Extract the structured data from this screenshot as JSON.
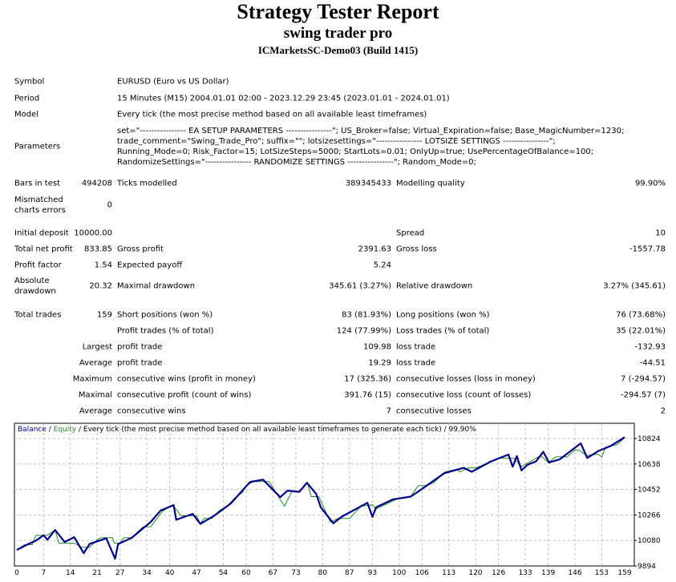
{
  "header": {
    "title": "Strategy Tester Report",
    "ea_name": "swing trader pro",
    "server": "ICMarketsSC-Demo03 (Build 1415)"
  },
  "rows": [
    [
      "Symbol",
      "",
      "EURUSD (Euro vs US Dollar)",
      "",
      "",
      ""
    ],
    [
      "Period",
      "",
      "15 Minutes (M15) 2004.01.01 02:00 - 2023.12.29 23:45 (2023.01.01 - 2024.01.01)",
      "",
      "",
      ""
    ],
    [
      "Model",
      "",
      "Every tick (the most precise method based on all available least timeframes)",
      "",
      "",
      ""
    ],
    [
      "Parameters",
      "",
      "set=\"---------------- EA SETUP PARAMETERS ----------------\"; US_Broker=false; Virtual_Expiration=false; Base_MagicNumber=1230; trade_comment=\"Swing_Trade_Pro\"; suffix=\"\"; lotsizesettings=\"---------------- LOTSIZE SETTINGS ----------------\"; Running_Mode=0; Risk_Factor=15; LotSizeSteps=5000; StartLots=0.01; OnlyUp=true; UsePercentageOfBalance=100; RandomizeSettings=\"---------------- RANDOMIZE SETTINGS ----------------\"; Random_Mode=0;",
      "",
      "",
      ""
    ],
    [
      "Bars in test",
      "494208",
      "Ticks modelled",
      "389345433",
      "Modelling quality",
      "99.90%"
    ],
    [
      "Mismatched charts errors",
      "0",
      "",
      "",
      "",
      ""
    ],
    [
      "Initial deposit",
      "10000.00",
      "",
      "",
      "Spread",
      "10"
    ],
    [
      "Total net profit",
      "833.85",
      "Gross profit",
      "2391.63",
      "Gross loss",
      "-1557.78"
    ],
    [
      "Profit factor",
      "1.54",
      "Expected payoff",
      "5.24",
      "",
      ""
    ],
    [
      "Absolute drawdown",
      "20.32",
      "Maximal drawdown",
      "345.61 (3.27%)",
      "Relative drawdown",
      "3.27% (345.61)"
    ],
    [
      "Total trades",
      "159",
      "Short positions (won %)",
      "83 (81.93%)",
      "Long positions (won %)",
      "76 (73.68%)"
    ],
    [
      "",
      "",
      "Profit trades (% of total)",
      "124 (77.99%)",
      "Loss trades (% of total)",
      "35 (22.01%)"
    ],
    [
      "",
      "Largest",
      "profit trade",
      "109.98",
      "loss trade",
      "-132.93"
    ],
    [
      "",
      "Average",
      "profit trade",
      "19.29",
      "loss trade",
      "-44.51"
    ],
    [
      "",
      "Maximum",
      "consecutive wins (profit in money)",
      "17 (325.36)",
      "consecutive losses (loss in money)",
      "7 (-294.57)"
    ],
    [
      "",
      "Maximal",
      "consecutive profit (count of wins)",
      "391.76 (15)",
      "consecutive loss (count of losses)",
      "-294.57 (7)"
    ],
    [
      "",
      "Average",
      "consecutive wins",
      "7",
      "consecutive losses",
      "2"
    ]
  ],
  "chart_data": {
    "type": "line",
    "legend_text": {
      "balance": "Balance",
      "sep1": " / ",
      "equity": "Equity",
      "rest": " / Every tick (the most precise method based on all available least timeframes to generate each tick) / 99.90%"
    },
    "x_ticks": [
      0,
      7,
      14,
      21,
      27,
      34,
      40,
      47,
      54,
      60,
      67,
      73,
      80,
      87,
      93,
      100,
      106,
      113,
      120,
      126,
      133,
      139,
      146,
      153,
      159
    ],
    "y_ticks": [
      9894,
      10080,
      10266,
      10452,
      10638,
      10824
    ],
    "xlim": [
      0,
      159
    ],
    "ylim": [
      9894,
      10930
    ],
    "grid": true,
    "colors": {
      "balance": "#00008b",
      "equity": "#228b22",
      "grid": "#c0c0c0"
    },
    "series": [
      {
        "name": "Balance",
        "points": [
          [
            0,
            10011
          ],
          [
            3,
            10054
          ],
          [
            5,
            10079
          ],
          [
            7,
            10118
          ],
          [
            8,
            10085
          ],
          [
            10,
            10157
          ],
          [
            12.5,
            10069
          ],
          [
            15,
            10104
          ],
          [
            17.5,
            9987
          ],
          [
            19,
            10054
          ],
          [
            23.4,
            10096
          ],
          [
            25.7,
            9947
          ],
          [
            26.5,
            10054
          ],
          [
            30,
            10098
          ],
          [
            35,
            10215
          ],
          [
            37.6,
            10299
          ],
          [
            41,
            10338
          ],
          [
            41.7,
            10231
          ],
          [
            46,
            10274
          ],
          [
            48,
            10201
          ],
          [
            51.6,
            10260
          ],
          [
            56,
            10351
          ],
          [
            61,
            10507
          ],
          [
            64.4,
            10524
          ],
          [
            68.9,
            10396
          ],
          [
            70.8,
            10443
          ],
          [
            73.9,
            10435
          ],
          [
            75.9,
            10501
          ],
          [
            78.3,
            10419
          ],
          [
            79.5,
            10322
          ],
          [
            82.8,
            10205
          ],
          [
            85,
            10254
          ],
          [
            91.7,
            10355
          ],
          [
            93,
            10252
          ],
          [
            94,
            10322
          ],
          [
            98.4,
            10380
          ],
          [
            103,
            10400
          ],
          [
            104.6,
            10429
          ],
          [
            111.8,
            10571
          ],
          [
            116.9,
            10610
          ],
          [
            119,
            10581
          ],
          [
            124,
            10657
          ],
          [
            128.6,
            10707
          ],
          [
            129.7,
            10618
          ],
          [
            130.8,
            10696
          ],
          [
            132,
            10591
          ],
          [
            133.6,
            10633
          ],
          [
            135.8,
            10657
          ],
          [
            137.7,
            10727
          ],
          [
            139.2,
            10649
          ],
          [
            142,
            10672
          ],
          [
            147.5,
            10789
          ],
          [
            149.2,
            10682
          ],
          [
            152,
            10731
          ],
          [
            155.4,
            10770
          ],
          [
            159,
            10834
          ]
        ]
      },
      {
        "name": "Equity",
        "points": [
          [
            0,
            10011
          ],
          [
            2,
            10049
          ],
          [
            4,
            10049
          ],
          [
            5,
            10118
          ],
          [
            8,
            10118
          ],
          [
            10,
            10157
          ],
          [
            11,
            10060
          ],
          [
            15,
            10060
          ],
          [
            17,
            10030
          ],
          [
            19,
            10030
          ],
          [
            21,
            10085
          ],
          [
            22,
            10100
          ],
          [
            25,
            10100
          ],
          [
            25.5,
            10060
          ],
          [
            27,
            10060
          ],
          [
            28,
            10100
          ],
          [
            30,
            10100
          ],
          [
            33,
            10180
          ],
          [
            35,
            10180
          ],
          [
            38,
            10290
          ],
          [
            40,
            10330
          ],
          [
            41,
            10330
          ],
          [
            43,
            10260
          ],
          [
            47,
            10260
          ],
          [
            48,
            10205
          ],
          [
            49,
            10240
          ],
          [
            51,
            10240
          ],
          [
            53,
            10300
          ],
          [
            55,
            10330
          ],
          [
            57,
            10390
          ],
          [
            59,
            10430
          ],
          [
            60,
            10480
          ],
          [
            62,
            10510
          ],
          [
            66,
            10510
          ],
          [
            70,
            10330
          ],
          [
            72,
            10440
          ],
          [
            74,
            10440
          ],
          [
            76,
            10500
          ],
          [
            77,
            10400
          ],
          [
            79,
            10400
          ],
          [
            82,
            10215
          ],
          [
            84,
            10240
          ],
          [
            87,
            10240
          ],
          [
            90,
            10330
          ],
          [
            93,
            10340
          ],
          [
            94,
            10310
          ],
          [
            97,
            10350
          ],
          [
            100,
            10390
          ],
          [
            103,
            10400
          ],
          [
            105,
            10480
          ],
          [
            107,
            10480
          ],
          [
            109,
            10500
          ],
          [
            112,
            10580
          ],
          [
            115,
            10600
          ],
          [
            116,
            10580
          ],
          [
            118,
            10610
          ],
          [
            120,
            10610
          ],
          [
            122,
            10630
          ],
          [
            126,
            10680
          ],
          [
            130,
            10680
          ],
          [
            132,
            10620
          ],
          [
            134,
            10650
          ],
          [
            137,
            10700
          ],
          [
            139,
            10650
          ],
          [
            141,
            10690
          ],
          [
            144,
            10690
          ],
          [
            146,
            10740
          ],
          [
            147,
            10740
          ],
          [
            149,
            10700
          ],
          [
            152,
            10710
          ],
          [
            153,
            10690
          ],
          [
            154,
            10760
          ],
          [
            157,
            10780
          ],
          [
            159,
            10830
          ]
        ]
      }
    ]
  }
}
